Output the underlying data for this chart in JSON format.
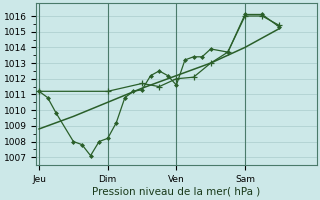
{
  "background_color": "#cce8e8",
  "grid_color_major": "#aacccc",
  "grid_color_minor": "#aacccc",
  "line_color": "#2a5f2a",
  "xlabel_text": "Pression niveau de la mer( hPa )",
  "ylim": [
    1006.5,
    1016.8
  ],
  "yticks": [
    1007,
    1008,
    1009,
    1010,
    1011,
    1012,
    1013,
    1014,
    1015,
    1016
  ],
  "xtick_labels": [
    "Jeu",
    "Dim",
    "Ven",
    "Sam"
  ],
  "xtick_positions": [
    0,
    24,
    48,
    72
  ],
  "vline_positions": [
    0,
    24,
    48,
    72
  ],
  "xlim": [
    -1,
    97
  ],
  "series1_x": [
    0,
    3,
    6,
    12,
    15,
    18,
    21,
    24,
    27,
    30,
    33,
    36,
    39,
    42,
    45,
    48,
    51,
    54,
    57,
    60,
    66,
    72,
    78,
    84
  ],
  "series1_y": [
    1011.2,
    1010.8,
    1009.8,
    1008.0,
    1007.8,
    1007.1,
    1008.0,
    1008.2,
    1009.2,
    1010.8,
    1011.2,
    1011.3,
    1012.2,
    1012.5,
    1012.2,
    1011.6,
    1013.2,
    1013.4,
    1013.4,
    1013.9,
    1013.7,
    1016.1,
    1016.1,
    1015.3
  ],
  "series2_x": [
    0,
    24,
    36,
    42,
    48,
    54,
    60,
    66,
    72,
    78,
    84
  ],
  "series2_y": [
    1011.2,
    1011.2,
    1011.7,
    1011.5,
    1012.0,
    1012.1,
    1013.0,
    1013.7,
    1016.0,
    1016.0,
    1015.4
  ],
  "series3_x": [
    0,
    12,
    24,
    36,
    48,
    60,
    72,
    84
  ],
  "series3_y": [
    1008.8,
    1009.6,
    1010.5,
    1011.4,
    1012.2,
    1013.0,
    1014.0,
    1015.2
  ],
  "xlabel_fontsize": 7.5,
  "tick_fontsize": 6.5,
  "marker_size": 2.5
}
